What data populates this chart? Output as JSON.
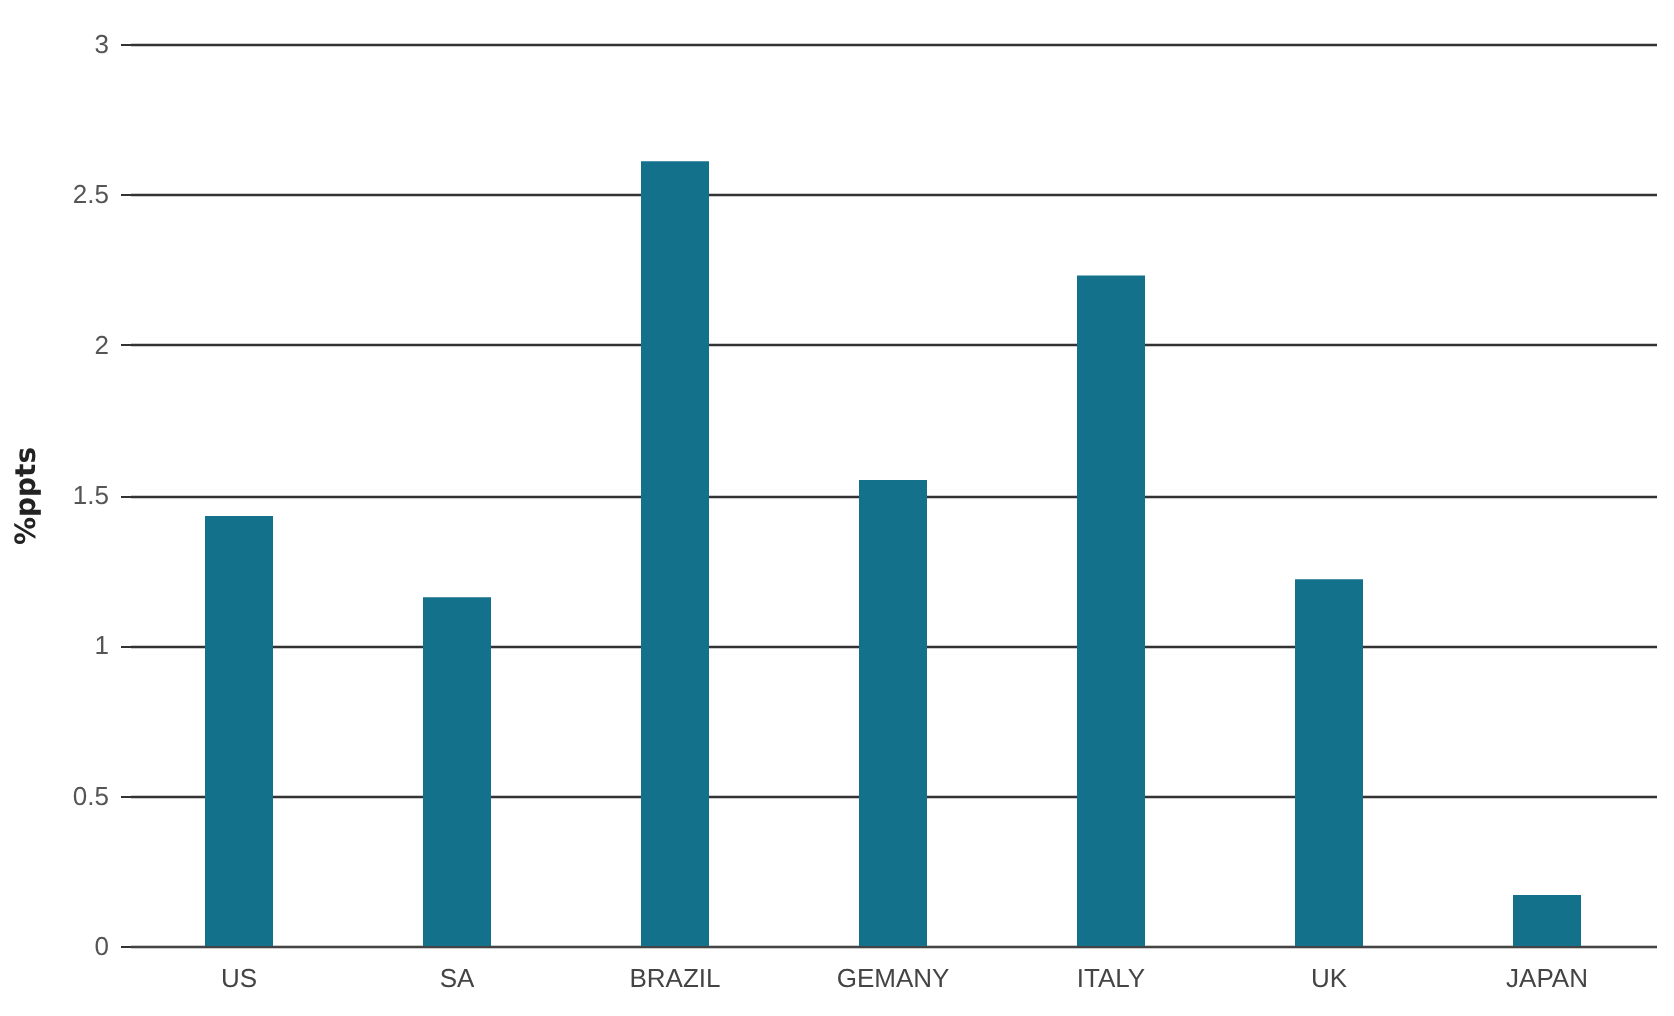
{
  "chart_data": {
    "type": "bar",
    "ylabel": "%ppts",
    "categories": [
      "US",
      "SA",
      "BRAZIL",
      "GEMANY",
      "ITALY",
      "UK",
      "JAPAN"
    ],
    "values": [
      1.43,
      1.16,
      2.61,
      1.55,
      2.23,
      1.22,
      0.17
    ],
    "color": "#13718b",
    "ylim": [
      0,
      3
    ],
    "yticks": [
      0,
      0.5,
      1,
      1.5,
      2,
      2.5,
      3
    ],
    "grid": "y"
  }
}
